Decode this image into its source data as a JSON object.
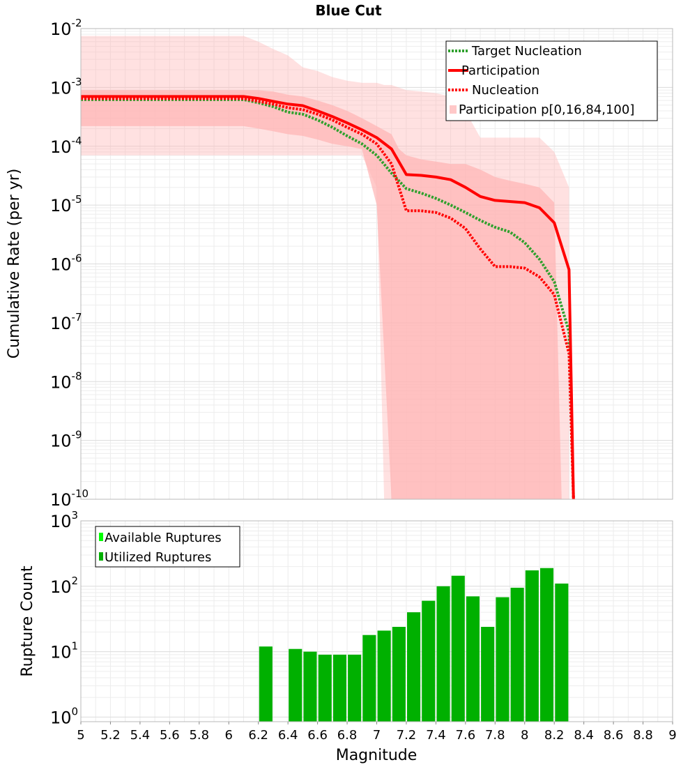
{
  "chart_data": [
    {
      "type": "line",
      "title": "Blue Cut",
      "xlabel": "",
      "ylabel": "Cumulative Rate (per yr)",
      "xlim": [
        5,
        9
      ],
      "ylim": [
        1e-10,
        0.01
      ],
      "yscale": "log",
      "yticks_exp": [
        -2,
        -3,
        -4,
        -5,
        -6,
        -7,
        -8,
        -9,
        -10
      ],
      "grid": true,
      "legend_position": "top-right",
      "legend": [
        "Target Nucleation",
        "Participation",
        "Nucleation",
        "Participation p[0,16,84,100]"
      ],
      "series": [
        {
          "name": "Target Nucleation",
          "style": "dotted",
          "color": "#2ea02c",
          "x": [
            5.0,
            5.1,
            5.2,
            5.3,
            5.4,
            5.5,
            5.6,
            5.7,
            5.8,
            5.9,
            6.0,
            6.1,
            6.2,
            6.3,
            6.4,
            6.5,
            6.6,
            6.7,
            6.8,
            6.9,
            7.0,
            7.1,
            7.2,
            7.3,
            7.4,
            7.5,
            7.6,
            7.7,
            7.8,
            7.9,
            8.0,
            8.1,
            8.2,
            8.3,
            8.33
          ],
          "y": [
            0.00062,
            0.00062,
            0.00062,
            0.00062,
            0.00062,
            0.00062,
            0.00062,
            0.00062,
            0.00062,
            0.00062,
            0.00062,
            0.00062,
            0.00055,
            0.00047,
            0.00038,
            0.00035,
            0.00028,
            0.00021,
            0.00015,
            0.00011,
            7e-05,
            3.5e-05,
            1.9e-05,
            1.6e-05,
            1.3e-05,
            1e-05,
            7.5e-06,
            5.5e-06,
            4.2e-06,
            3.5e-06,
            2.3e-06,
            1.2e-06,
            5e-07,
            7e-08,
            1e-10
          ]
        },
        {
          "name": "Participation",
          "style": "solid",
          "color": "#ff0000",
          "x": [
            5.0,
            5.1,
            5.2,
            5.3,
            5.4,
            5.5,
            5.6,
            5.7,
            5.8,
            5.9,
            6.0,
            6.1,
            6.2,
            6.3,
            6.4,
            6.5,
            6.6,
            6.7,
            6.8,
            6.9,
            7.0,
            7.1,
            7.2,
            7.3,
            7.4,
            7.5,
            7.6,
            7.7,
            7.8,
            7.9,
            8.0,
            8.1,
            8.2,
            8.3,
            8.33
          ],
          "y": [
            0.0007,
            0.0007,
            0.0007,
            0.0007,
            0.0007,
            0.0007,
            0.0007,
            0.0007,
            0.0007,
            0.0007,
            0.0007,
            0.0007,
            0.00065,
            0.00058,
            0.00052,
            0.00049,
            0.0004,
            0.00032,
            0.00025,
            0.00019,
            0.00014,
            9e-05,
            3.3e-05,
            3.2e-05,
            3e-05,
            2.7e-05,
            2e-05,
            1.4e-05,
            1.2e-05,
            1.15e-05,
            1.1e-05,
            9e-06,
            5e-06,
            8e-07,
            1e-10
          ]
        },
        {
          "name": "Nucleation",
          "style": "dotted",
          "color": "#ff0000",
          "x": [
            5.0,
            5.1,
            5.2,
            5.3,
            5.4,
            5.5,
            5.6,
            5.7,
            5.8,
            5.9,
            6.0,
            6.1,
            6.2,
            6.3,
            6.4,
            6.5,
            6.6,
            6.7,
            6.8,
            6.9,
            7.0,
            7.1,
            7.2,
            7.3,
            7.4,
            7.5,
            7.6,
            7.7,
            7.8,
            7.9,
            8.0,
            8.1,
            8.2,
            8.3,
            8.33
          ],
          "y": [
            0.00065,
            0.00065,
            0.00065,
            0.00065,
            0.00065,
            0.00065,
            0.00065,
            0.00065,
            0.00065,
            0.00065,
            0.00065,
            0.00065,
            0.00058,
            0.00052,
            0.00045,
            0.00042,
            0.00035,
            0.00028,
            0.00021,
            0.00016,
            0.00011,
            5e-05,
            8e-06,
            8e-06,
            7.5e-06,
            6e-06,
            4e-06,
            1.8e-06,
            9e-07,
            9e-07,
            8.5e-07,
            6e-07,
            3e-07,
            3e-08,
            1e-10
          ]
        }
      ],
      "bands": [
        {
          "name": "Participation p[0,16,84,100]",
          "color": "#ffb3b3",
          "opacity": 0.4,
          "x": [
            5.0,
            5.1,
            5.2,
            5.3,
            5.4,
            5.5,
            5.6,
            5.7,
            5.8,
            5.9,
            6.0,
            6.1,
            6.2,
            6.3,
            6.4,
            6.5,
            6.6,
            6.7,
            6.8,
            6.9,
            7.0,
            7.05,
            7.1,
            7.2,
            7.3,
            7.4,
            7.5,
            7.6,
            7.7,
            7.8,
            7.9,
            8.0,
            8.1,
            8.2,
            8.25,
            8.3
          ],
          "upper": [
            0.0075,
            0.0075,
            0.0075,
            0.0075,
            0.0075,
            0.0075,
            0.0075,
            0.0075,
            0.0075,
            0.0075,
            0.0075,
            0.0075,
            0.006,
            0.0045,
            0.0035,
            0.0022,
            0.0019,
            0.0015,
            0.0013,
            0.0012,
            0.0012,
            0.0011,
            0.0011,
            0.0009,
            0.00085,
            0.0008,
            0.0007,
            0.0004,
            0.00014,
            0.00014,
            0.00014,
            0.00014,
            0.00014,
            8e-05,
            4e-05,
            2e-05
          ],
          "lower": [
            7e-05,
            7e-05,
            7e-05,
            7e-05,
            7e-05,
            7e-05,
            7e-05,
            7e-05,
            7e-05,
            7e-05,
            7e-05,
            7e-05,
            7e-05,
            7e-05,
            7e-05,
            7e-05,
            7e-05,
            7e-05,
            7e-05,
            7e-05,
            2e-05,
            1e-10,
            1e-10,
            1e-10,
            1e-10,
            1e-10,
            1e-10,
            1e-10,
            1e-10,
            1e-10,
            1e-10,
            1e-10,
            1e-10,
            1e-10,
            1e-10,
            1e-10
          ]
        },
        {
          "name": "",
          "color": "#ffb3b3",
          "opacity": 0.7,
          "x": [
            5.0,
            5.1,
            5.2,
            5.3,
            5.4,
            5.5,
            5.6,
            5.7,
            5.8,
            5.9,
            6.0,
            6.1,
            6.2,
            6.3,
            6.4,
            6.5,
            6.6,
            6.7,
            6.8,
            6.9,
            7.0,
            7.1,
            7.15,
            7.2,
            7.3,
            7.4,
            7.5,
            7.6,
            7.7,
            7.8,
            7.9,
            8.0,
            8.1,
            8.2,
            8.25,
            8.3
          ],
          "upper": [
            0.0009,
            0.0009,
            0.0009,
            0.0009,
            0.0009,
            0.0009,
            0.0009,
            0.0009,
            0.0009,
            0.0009,
            0.0009,
            0.0009,
            0.0009,
            0.00085,
            0.00075,
            0.0007,
            0.0006,
            0.0005,
            0.0004,
            0.0003,
            0.00022,
            0.00016,
            9e-05,
            7e-05,
            6e-05,
            5.5e-05,
            5e-05,
            5e-05,
            4e-05,
            3e-05,
            2.6e-05,
            2.3e-05,
            2e-05,
            1.1e-05,
            1e-10,
            1e-10
          ],
          "lower": [
            0.00022,
            0.00022,
            0.00022,
            0.00022,
            0.00022,
            0.00022,
            0.00022,
            0.00022,
            0.00022,
            0.00022,
            0.00022,
            0.00022,
            0.0002,
            0.00018,
            0.00016,
            0.00015,
            0.00013,
            0.00011,
            0.0001,
            9e-05,
            1e-05,
            1e-10,
            1e-10,
            1e-10,
            1e-10,
            1e-10,
            1e-10,
            1e-10,
            1e-10,
            1e-10,
            1e-10,
            1e-10,
            1e-10,
            1e-10,
            1e-10,
            1e-10
          ]
        }
      ]
    },
    {
      "type": "bar",
      "title": "",
      "xlabel": "Magnitude",
      "ylabel": "Rupture Count",
      "xlim": [
        5,
        9
      ],
      "ylim": [
        1,
        1000
      ],
      "yscale": "log",
      "yticks_exp": [
        0,
        1,
        2,
        3
      ],
      "xticks": [
        "5",
        "5.2",
        "5.4",
        "5.6",
        "5.8",
        "6",
        "6.2",
        "6.4",
        "6.6",
        "6.8",
        "7",
        "7.2",
        "7.4",
        "7.6",
        "7.8",
        "8",
        "8.2",
        "8.4",
        "8.6",
        "8.8",
        "9"
      ],
      "grid": true,
      "legend_position": "top-left",
      "legend": [
        "Available Ruptures",
        "Utilized Ruptures"
      ],
      "legend_colors": [
        "#00ff00",
        "#00b000"
      ],
      "bar_width": 0.09,
      "series": [
        {
          "name": "Utilized Ruptures",
          "color": "#00b000",
          "x": [
            6.25,
            6.45,
            6.55,
            6.65,
            6.75,
            6.85,
            6.95,
            7.05,
            7.15,
            7.25,
            7.35,
            7.45,
            7.55,
            7.65,
            7.75,
            7.85,
            7.95,
            8.05,
            8.15,
            8.25
          ],
          "values": [
            12,
            11,
            10,
            9,
            9,
            9,
            18,
            21,
            24,
            40,
            60,
            100,
            145,
            70,
            24,
            68,
            95,
            175,
            190,
            110
          ]
        }
      ]
    }
  ]
}
